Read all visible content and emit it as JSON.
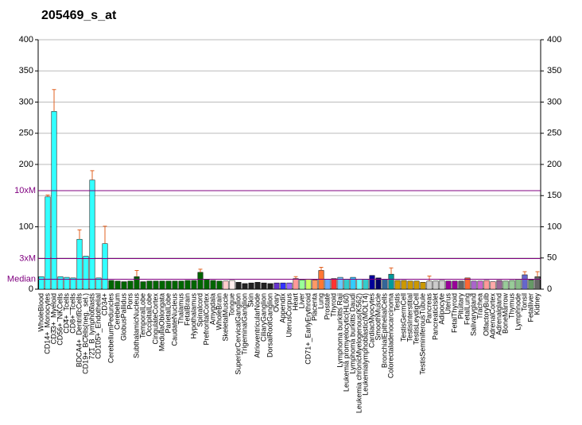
{
  "chart_data": {
    "type": "bar",
    "title": "205469_s_at",
    "categories": [
      "WholeBlood",
      "CD14+_Monocytes",
      "CD33+_Myeloid",
      "CD56+_NKCells",
      "CD4+_Tcells",
      "CD8+_Tcells",
      "BDCA4+_DentriticCells",
      "CD19+_BCells(neg._sel.)",
      "721_B_lymphoblasts",
      "CD105+_Endothelial",
      "CD34+",
      "CerebellumPeduncles",
      "Cerebellum",
      "GlobusPallidus",
      "Pons",
      "SubthalamicNucleus",
      "TemporalLobe",
      "OccipitalLobe",
      "CingulateCortex",
      "MedullaOblongata",
      "ParietalLobe",
      "CaudateNucleus",
      "Thalamus",
      "FetalBrain",
      "Hypothalamus",
      "Spinalcord",
      "PrefrontalCortex",
      "Amygdala",
      "WholeBrain",
      "SkeletalMuscle",
      "Tongue",
      "SuperiorCervicalGanglion",
      "TrigeminalGanglion",
      "Skin",
      "AtrioventricularNode",
      "CiliaryGanglion",
      "DorsalRootGanglion",
      "Ovary",
      "Appendix",
      "UterusCorpus",
      "Heart",
      "Liver",
      "CD71+_EarlyErythroid",
      "Placenta",
      "Lung",
      "Prostate",
      "Thyroid",
      "Lymphoma burkitts Raji",
      "Leukemia promyelocytic(HL60)",
      "Lymphoma burkitts Daudi",
      "Leukemia chronicMyelogenous(K562)",
      "Leukemialymphoblastic(MOLT4)",
      "CardiacMyocytes",
      "SmoothMuscle",
      "BronchialEpithelialCells",
      "Colorectaladenocarcinoma",
      "Testis",
      "TestisGermCell",
      "TestisInterstitial",
      "TestisLeydigCell",
      "TestisSeminiferousTubule",
      "Pancreas",
      "PancreaticIslet",
      "Adipocyte",
      "Uterus",
      "FetalThyroid",
      "Pituitary",
      "FetalLung",
      "Salivarygland",
      "Trachea",
      "OlfactoryBulb",
      "AdrenalCortex",
      "Adrenalgland",
      "BoneMarrow",
      "Thymus",
      "Lymphnode",
      "Tonsil",
      "Fetalliver",
      "Kidney"
    ],
    "series": [
      {
        "values": [
          20,
          148,
          285,
          20,
          19,
          18,
          80,
          53,
          175,
          18,
          73,
          14,
          13,
          12,
          13,
          20,
          12,
          13,
          13,
          13,
          13,
          13,
          13,
          14,
          14,
          27,
          16,
          14,
          13,
          13,
          14,
          11,
          9,
          10,
          11,
          10,
          9,
          10,
          10,
          10,
          17,
          15,
          16,
          15,
          30,
          16,
          17,
          19,
          16,
          19,
          16,
          16,
          22,
          18,
          16,
          24,
          14,
          14,
          13,
          13,
          11,
          13,
          13,
          14,
          13,
          13,
          13,
          18,
          13,
          13,
          14,
          12,
          14,
          13,
          14,
          16,
          23,
          15,
          20
        ],
        "errors": [
          null,
          3,
          35,
          null,
          null,
          null,
          15,
          null,
          15,
          null,
          28,
          null,
          null,
          null,
          null,
          10,
          null,
          null,
          null,
          null,
          null,
          null,
          null,
          null,
          null,
          5,
          null,
          null,
          null,
          null,
          null,
          null,
          null,
          null,
          null,
          null,
          null,
          null,
          null,
          null,
          3,
          null,
          null,
          null,
          5,
          null,
          null,
          null,
          null,
          null,
          null,
          null,
          null,
          null,
          null,
          10,
          null,
          null,
          null,
          null,
          null,
          8,
          null,
          null,
          null,
          null,
          null,
          null,
          null,
          null,
          null,
          null,
          null,
          null,
          null,
          null,
          5,
          null,
          8
        ],
        "colors": [
          "#33ffff",
          "#33ffff",
          "#33ffff",
          "#33ffff",
          "#33ffff",
          "#33ffff",
          "#33ffff",
          "#33ffff",
          "#33ffff",
          "#33ffff",
          "#33ffff",
          "#006600",
          "#006600",
          "#006600",
          "#006600",
          "#006600",
          "#006600",
          "#006600",
          "#006600",
          "#006600",
          "#006600",
          "#006600",
          "#006600",
          "#006600",
          "#006600",
          "#006600",
          "#006600",
          "#006600",
          "#006600",
          "#ffcccc",
          "#ffeeee",
          "#222222",
          "#222222",
          "#222222",
          "#222222",
          "#222222",
          "#222222",
          "#6633cc",
          "#3333ff",
          "#9966ff",
          "#ff9999",
          "#99ff99",
          "#ccff66",
          "#ff9966",
          "#ff7733",
          "#66aaff",
          "#ff3333",
          "#66ccff",
          "#33cccc",
          "#33ccff",
          "#66ffff",
          "#33cccc",
          "#000099",
          "#000066",
          "#336699",
          "#009999",
          "#cc9900",
          "#cc9900",
          "#cc9900",
          "#cc9900",
          "#cc9900",
          "#cccccc",
          "#cccccc",
          "#cccccc",
          "#990099",
          "#990099",
          "#666666",
          "#ff6633",
          "#aa66cc",
          "#cc66cc",
          "#ff9999",
          "#ffaaaa",
          "#996699",
          "#99cc99",
          "#99cc99",
          "#88bb88",
          "#6666cc",
          "#669966",
          "#666666"
        ]
      }
    ],
    "ylim": [
      0,
      400
    ],
    "yticks": [
      0,
      100,
      200,
      250,
      300,
      350,
      400
    ],
    "y2lim": [
      0,
      400
    ],
    "y2ticks": [
      0,
      50,
      100,
      150,
      200,
      250,
      300,
      350,
      400
    ],
    "grid": true,
    "reference_lines": [
      {
        "label": "10xM",
        "value": 158
      },
      {
        "label": "3xM",
        "value": 49
      },
      {
        "label": "Median",
        "value": 16
      }
    ]
  }
}
